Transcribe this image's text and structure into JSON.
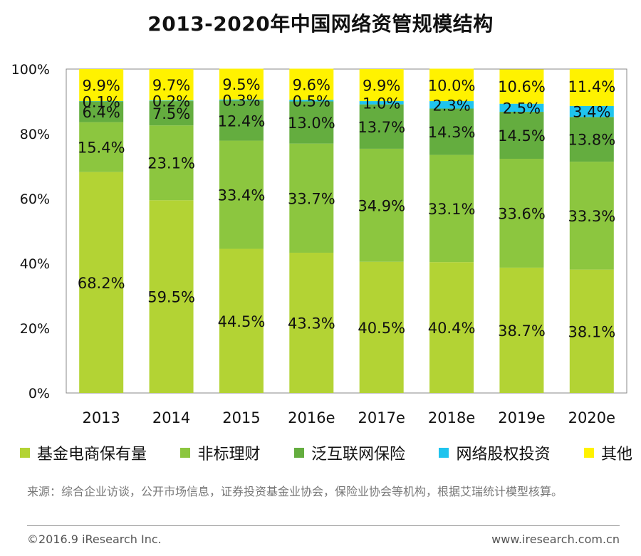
{
  "chart_data": {
    "type": "bar",
    "stacked": true,
    "title": "2013-2020年中国网络资管规模结构",
    "categories": [
      "2013",
      "2014",
      "2015",
      "2016e",
      "2017e",
      "2018e",
      "2019e",
      "2020e"
    ],
    "ylim": [
      0,
      100
    ],
    "ytick_labels": [
      "0%",
      "20%",
      "40%",
      "60%",
      "80%",
      "100%"
    ],
    "series": [
      {
        "name": "基金电商保有量",
        "color": "#b3d334",
        "values": [
          68.2,
          59.5,
          44.5,
          43.3,
          40.5,
          40.4,
          38.7,
          38.1
        ],
        "labels": [
          "68.2%",
          "59.5%",
          "44.5%",
          "43.3%",
          "40.5%",
          "40.4%",
          "38.7%",
          "38.1%"
        ]
      },
      {
        "name": "非标理财",
        "color": "#8cc63f",
        "values": [
          15.4,
          23.1,
          33.4,
          33.7,
          34.9,
          33.1,
          33.6,
          33.3
        ],
        "labels": [
          "15.4%",
          "23.1%",
          "33.4%",
          "33.7%",
          "34.9%",
          "33.1%",
          "33.6%",
          "33.3%"
        ]
      },
      {
        "name": "泛互联网保险",
        "color": "#64ad3f",
        "values": [
          6.4,
          7.5,
          12.4,
          13.0,
          13.7,
          14.3,
          14.5,
          13.8
        ],
        "labels": [
          "6.4%",
          "7.5%",
          "12.4%",
          "13.0%",
          "13.7%",
          "14.3%",
          "14.5%",
          "13.8%"
        ]
      },
      {
        "name": "网络股权投资",
        "color": "#1fc4ee",
        "values": [
          0.1,
          0.2,
          0.3,
          0.5,
          1.0,
          2.3,
          2.5,
          3.4
        ],
        "labels": [
          "0.1%",
          "0.2%",
          "0.3%",
          "0.5%",
          "1.0%",
          "2.3%",
          "2.5%",
          "3.4%"
        ]
      },
      {
        "name": "其他",
        "color": "#fff200",
        "values": [
          9.9,
          9.7,
          9.5,
          9.6,
          9.9,
          10.0,
          10.6,
          11.4
        ],
        "labels": [
          "9.9%",
          "9.7%",
          "9.5%",
          "9.6%",
          "9.9%",
          "10.0%",
          "10.6%",
          "11.4%"
        ]
      }
    ]
  },
  "source_text": "来源：综合企业访谈，公开市场信息，证券投资基金业协会，保险业协会等机构，根据艾瑞统计模型核算。",
  "copyright": "©2016.9 iResearch Inc.",
  "website": "www.iresearch.com.cn"
}
